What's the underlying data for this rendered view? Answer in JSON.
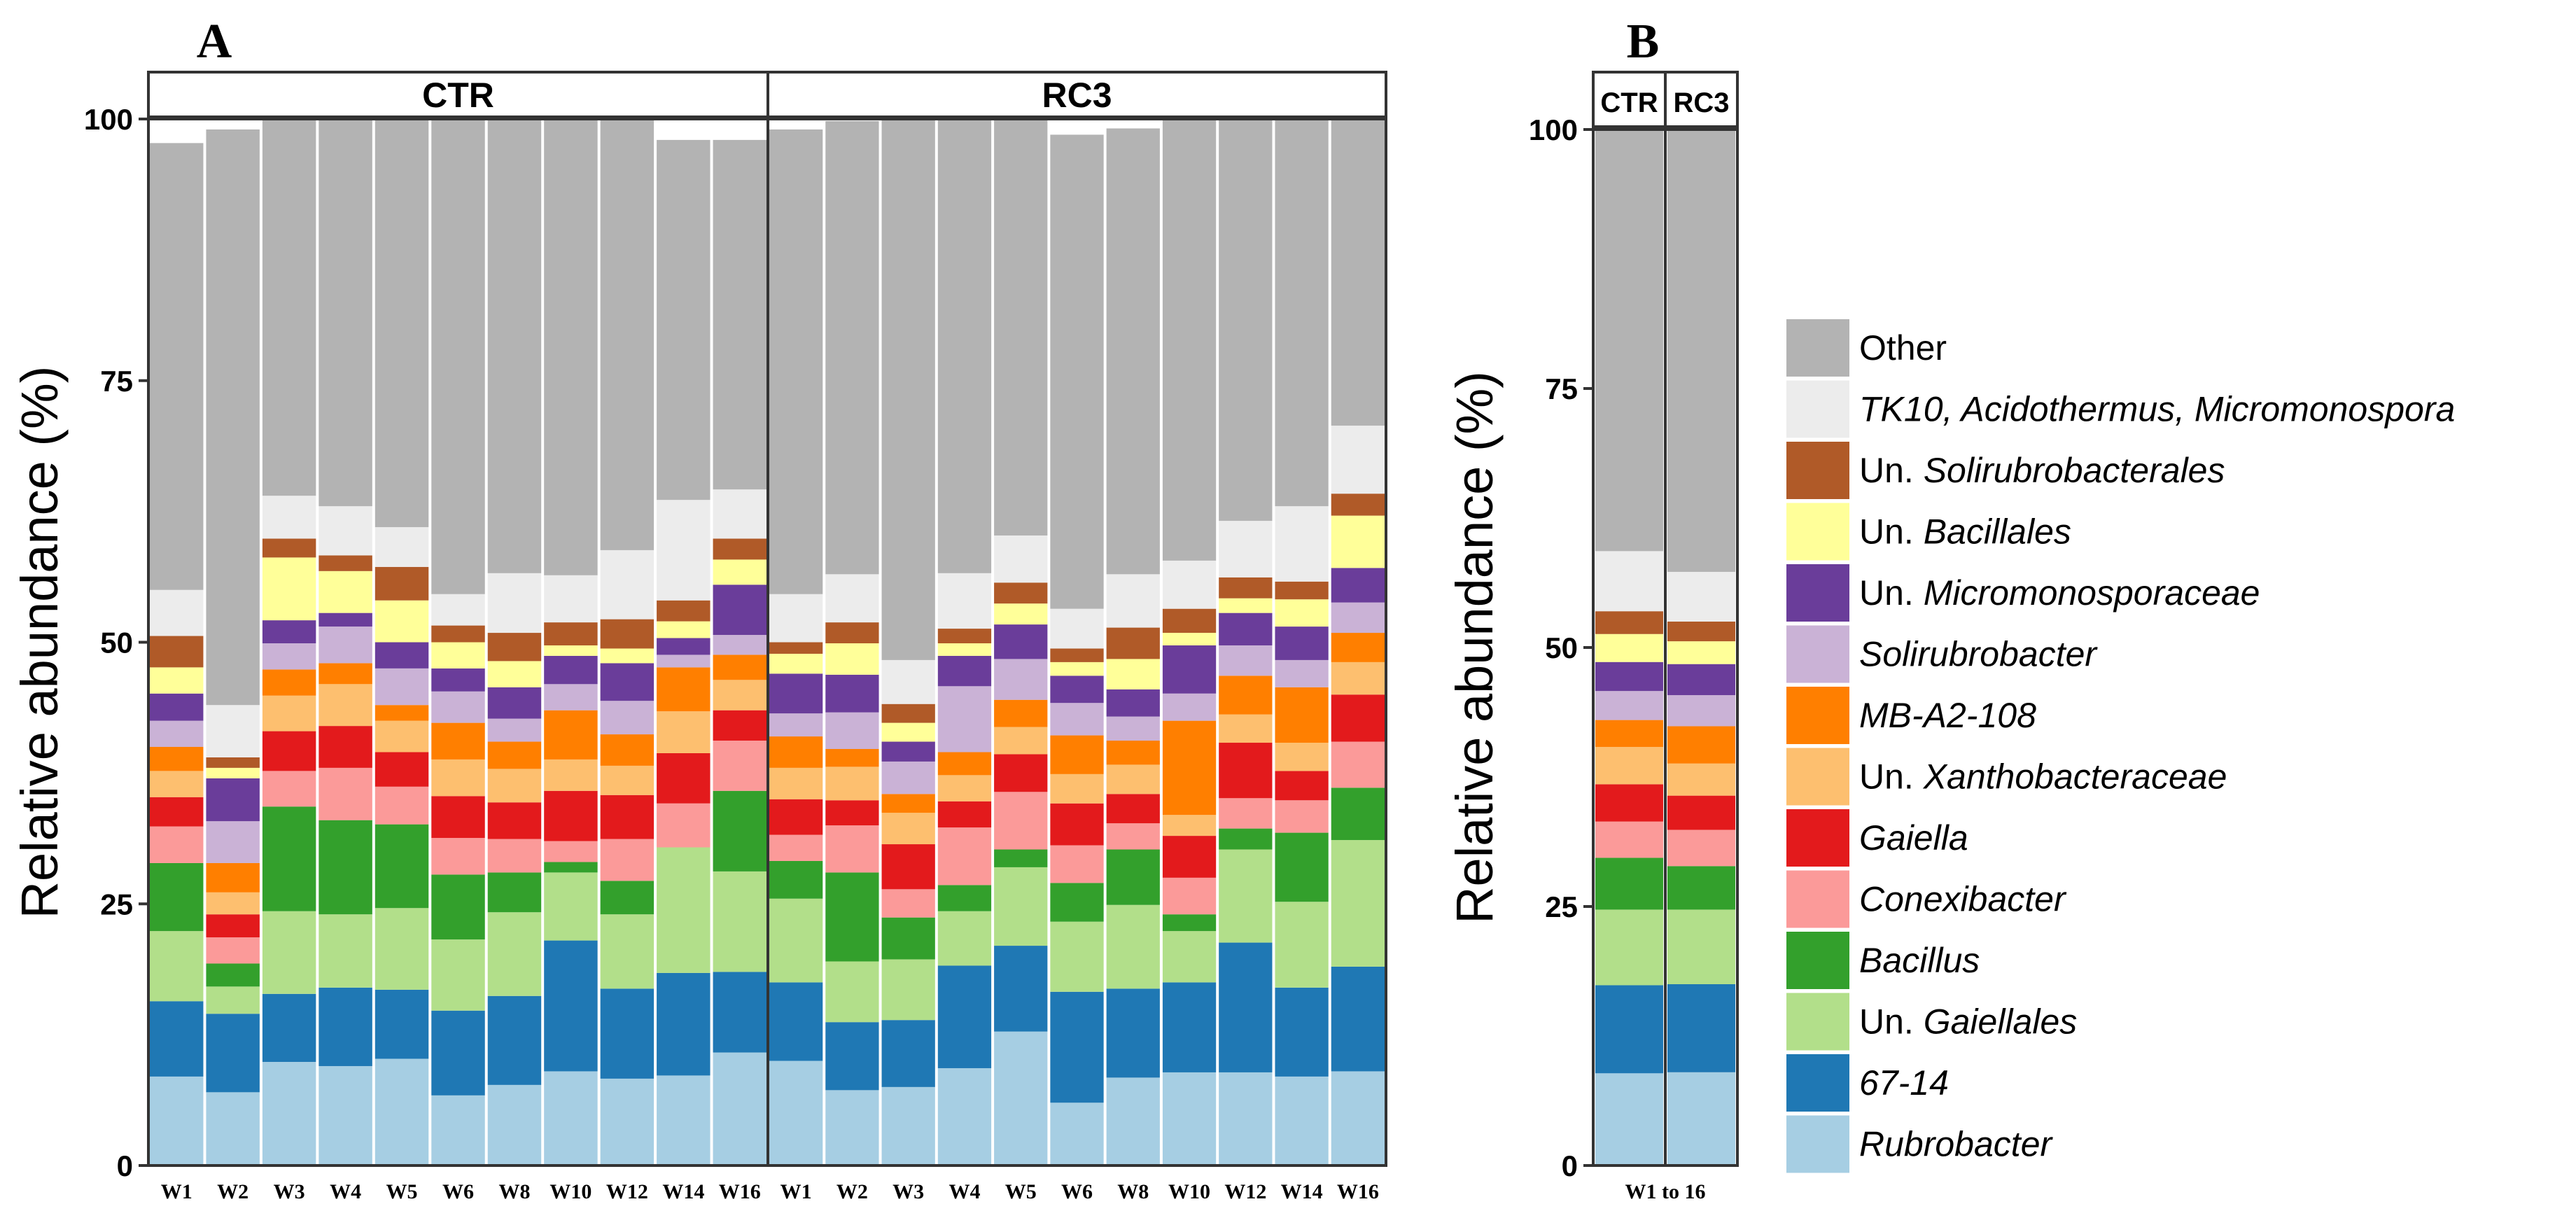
{
  "chart_data": [
    {
      "panel_label": "A",
      "type": "bar",
      "stacked": true,
      "facets": [
        "CTR",
        "RC3"
      ],
      "categories": [
        "W1",
        "W2",
        "W3",
        "W4",
        "W5",
        "W6",
        "W8",
        "W10",
        "W12",
        "W14",
        "W16"
      ],
      "ylabel": "Relative abundance (%)",
      "yticks": [
        0,
        25,
        50,
        75,
        100
      ],
      "ylim": [
        0,
        100
      ],
      "stack_order_bottom_to_top": [
        "Rubrobacter",
        "67-14",
        "Un. Gaiellales",
        "Bacillus",
        "Conexibacter",
        "Gaiella",
        "Un. Xanthobacteraceae",
        "MB-A2-108",
        "Solirubrobacter",
        "Un. Micromonosporaceae",
        "Un. Bacillales",
        "Un. Solirubrobacterales",
        "TK10, Acidothermus, Micromonospora",
        "Other"
      ],
      "series": {
        "CTR": [
          [
            8.5,
            7.2,
            6.7,
            6.5,
            3.5,
            2.8,
            2.5,
            2.3,
            2.5,
            2.6,
            2.5,
            3.0,
            4.4,
            42.7
          ],
          [
            7.0,
            7.5,
            2.6,
            2.2,
            2.5,
            2.2,
            2.1,
            2.8,
            4.0,
            4.1,
            1.0,
            1.0,
            5.0,
            55.0
          ],
          [
            9.9,
            6.5,
            7.9,
            10.0,
            3.4,
            3.8,
            3.4,
            2.5,
            2.5,
            2.2,
            6.0,
            1.8,
            4.1,
            36.0
          ],
          [
            9.5,
            7.5,
            7.0,
            9.0,
            5.0,
            4.0,
            4.0,
            2.0,
            3.5,
            1.3,
            4.0,
            1.5,
            4.7,
            37.0
          ],
          [
            10.2,
            6.6,
            7.8,
            8.0,
            3.6,
            3.3,
            3.0,
            1.5,
            3.5,
            2.5,
            4.0,
            3.2,
            3.8,
            39.0
          ],
          [
            6.7,
            8.1,
            6.8,
            6.2,
            3.5,
            4.0,
            3.5,
            3.5,
            3.0,
            2.2,
            2.5,
            1.6,
            3.0,
            45.4
          ],
          [
            7.7,
            8.5,
            8.0,
            3.8,
            3.2,
            3.5,
            3.2,
            2.6,
            2.2,
            3.0,
            2.5,
            2.7,
            5.7,
            43.4
          ],
          [
            9.0,
            12.5,
            6.5,
            1.0,
            2.0,
            4.8,
            3.0,
            4.7,
            2.5,
            2.7,
            1.0,
            2.2,
            4.5,
            43.6
          ],
          [
            8.3,
            8.6,
            7.1,
            3.2,
            4.0,
            4.2,
            2.8,
            3.0,
            3.2,
            3.6,
            1.4,
            2.8,
            6.6,
            41.2
          ],
          [
            8.6,
            9.8,
            12.0,
            0,
            4.2,
            4.8,
            4.0,
            4.2,
            1.2,
            1.6,
            1.6,
            2.0,
            9.6,
            34.4
          ],
          [
            10.8,
            7.7,
            9.6,
            7.7,
            4.8,
            2.9,
            2.9,
            2.4,
            1.9,
            4.8,
            2.4,
            2.0,
            4.7,
            33.4
          ]
        ],
        "RC3": [
          [
            10.0,
            7.5,
            8.0,
            3.6,
            2.5,
            3.4,
            3.0,
            3.0,
            2.2,
            3.8,
            1.9,
            1.1,
            4.6,
            44.4
          ],
          [
            7.2,
            6.5,
            5.8,
            8.5,
            4.5,
            2.4,
            3.2,
            1.7,
            3.5,
            3.6,
            3.0,
            2.0,
            4.6,
            43.3
          ],
          [
            7.5,
            6.4,
            5.8,
            4.0,
            2.7,
            4.3,
            3.0,
            1.8,
            3.1,
            1.9,
            1.8,
            1.8,
            4.2,
            51.7
          ],
          [
            9.3,
            9.8,
            5.2,
            2.5,
            5.5,
            2.5,
            2.5,
            2.2,
            6.3,
            2.9,
            1.2,
            1.4,
            5.3,
            43.4
          ],
          [
            12.8,
            8.2,
            7.5,
            1.7,
            5.5,
            3.6,
            2.6,
            2.6,
            3.9,
            3.3,
            2.0,
            2.0,
            4.5,
            39.8
          ],
          [
            6.0,
            10.6,
            6.7,
            3.7,
            3.6,
            4.0,
            2.8,
            3.7,
            3.1,
            2.6,
            1.3,
            1.3,
            3.8,
            45.3
          ],
          [
            8.4,
            8.5,
            8.0,
            5.3,
            2.5,
            2.8,
            2.8,
            2.3,
            2.3,
            2.6,
            2.9,
            3.0,
            5.1,
            42.6
          ],
          [
            8.9,
            8.6,
            4.9,
            1.6,
            3.5,
            4.0,
            2.0,
            9.0,
            2.6,
            4.6,
            1.2,
            2.3,
            4.6,
            42.2
          ],
          [
            8.9,
            12.4,
            8.9,
            2.0,
            2.9,
            5.3,
            2.7,
            3.7,
            2.9,
            3.1,
            1.4,
            2.0,
            5.4,
            39.1
          ],
          [
            8.5,
            8.5,
            8.2,
            6.6,
            3.1,
            2.8,
            2.7,
            5.3,
            2.6,
            3.2,
            2.6,
            1.7,
            7.2,
            37.0
          ],
          [
            9.0,
            10.0,
            12.1,
            5.0,
            4.4,
            4.5,
            3.1,
            2.8,
            2.9,
            3.3,
            5.0,
            2.1,
            6.5,
            29.3
          ]
        ]
      }
    },
    {
      "panel_label": "B",
      "type": "bar",
      "stacked": true,
      "facets": [
        "CTR",
        "RC3"
      ],
      "categories": [
        "W1 to 16"
      ],
      "ylabel": "Relative abundance (%)",
      "yticks": [
        0,
        25,
        50,
        75,
        100
      ],
      "ylim": [
        0,
        100
      ],
      "series": {
        "CTR": [
          [
            8.9,
            8.5,
            7.3,
            5.0,
            3.5,
            3.6,
            3.6,
            2.6,
            2.8,
            2.8,
            2.7,
            2.2,
            5.8,
            40.7
          ]
        ],
        "RC3": [
          [
            9.0,
            8.5,
            7.2,
            4.2,
            3.5,
            3.3,
            3.1,
            3.6,
            3.0,
            3.0,
            2.2,
            1.9,
            4.8,
            42.7
          ]
        ]
      }
    }
  ],
  "legend": {
    "items": [
      {
        "label": "Other",
        "italic": false,
        "color": "#b3b3b3"
      },
      {
        "label": "TK10, Acidothermus, Micromonospora",
        "italic": true,
        "color": "#ececec"
      },
      {
        "prefix": "Un. ",
        "label": "Solirubrobacterales",
        "italic": true,
        "color": "#b05a28"
      },
      {
        "prefix": "Un. ",
        "label": "Bacillales",
        "italic": true,
        "color": "#ffff99"
      },
      {
        "prefix": "Un. ",
        "label": "Micromonosporaceae",
        "italic": true,
        "color": "#6a3d9a"
      },
      {
        "label": "Solirubrobacter",
        "italic": true,
        "color": "#cab2d6"
      },
      {
        "label": "MB-A2-108",
        "italic": true,
        "color": "#ff7f00"
      },
      {
        "prefix": "Un. ",
        "label": "Xanthobacteraceae",
        "italic": true,
        "color": "#fdbf6f"
      },
      {
        "label": "Gaiella",
        "italic": true,
        "color": "#e31a1c"
      },
      {
        "label": "Conexibacter",
        "italic": true,
        "color": "#fb9a99"
      },
      {
        "label": "Bacillus",
        "italic": true,
        "color": "#33a02c"
      },
      {
        "prefix": "Un. ",
        "label": "Gaiellales",
        "italic": true,
        "color": "#b2df8a"
      },
      {
        "label": "67-14",
        "italic": true,
        "color": "#1f78b4"
      },
      {
        "label": "Rubrobacter",
        "italic": true,
        "color": "#a6cee3"
      }
    ]
  }
}
